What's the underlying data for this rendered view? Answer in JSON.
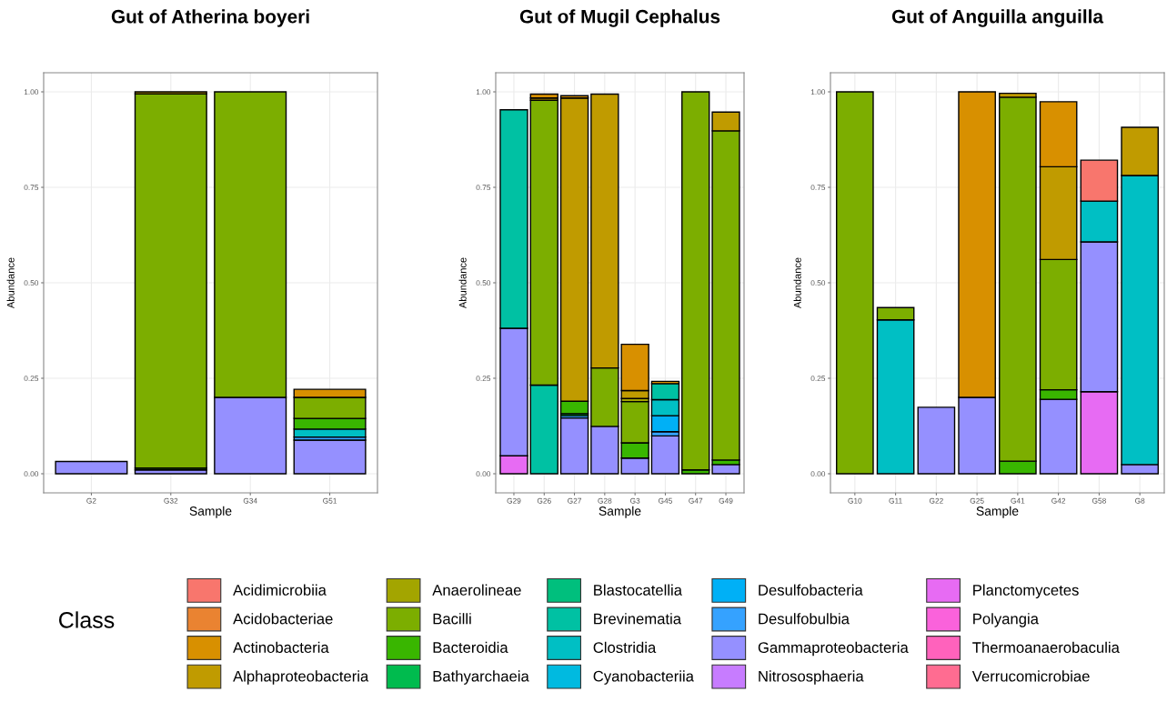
{
  "chart_data": [
    {
      "type": "bar",
      "stacked": true,
      "title": "Gut of Atherina boyeri",
      "xlabel": "Sample",
      "ylabel": "Abundance",
      "legend_title": "Class",
      "legend": "bottom",
      "grid": true,
      "ylim": [
        -0.05,
        1.05
      ],
      "yticks": [
        {
          "value": 0,
          "label": "0.00"
        },
        {
          "value": 0.25,
          "label": "0.25"
        },
        {
          "value": 0.5,
          "label": "0.50"
        },
        {
          "value": 0.75,
          "label": "0.75"
        },
        {
          "value": 1,
          "label": "1.00"
        }
      ],
      "categories": [
        "G2",
        "G32",
        "G34",
        "G51"
      ],
      "series": [
        {
          "name": "Verrucomicrobiae",
          "color": "#ff6c91",
          "values": [
            null,
            null,
            null,
            null
          ]
        },
        {
          "name": "Thermoanaerobaculia",
          "color": "#ff62bc",
          "values": [
            null,
            null,
            null,
            null
          ]
        },
        {
          "name": "Polyangia",
          "color": "#fa62db",
          "values": [
            null,
            null,
            null,
            null
          ]
        },
        {
          "name": "Planctomycetes",
          "color": "#e76bf3",
          "values": [
            null,
            null,
            null,
            null
          ]
        },
        {
          "name": "Nitrososphaeria",
          "color": "#c77cff",
          "values": [
            null,
            null,
            null,
            null
          ]
        },
        {
          "name": "Gammaproteobacteria",
          "color": "#9590ff",
          "values": [
            0.032,
            0.01,
            0.2,
            0.088
          ]
        },
        {
          "name": "Desulfobulbia",
          "color": "#35a2ff",
          "values": [
            null,
            null,
            null,
            0.008
          ]
        },
        {
          "name": "Desulfobacteria",
          "color": "#00b0f6",
          "values": [
            null,
            null,
            null,
            null
          ]
        },
        {
          "name": "Cyanobacteriia",
          "color": "#00bae0",
          "values": [
            null,
            null,
            null,
            null
          ]
        },
        {
          "name": "Clostridia",
          "color": "#00bfc4",
          "values": [
            null,
            null,
            null,
            0.021
          ]
        },
        {
          "name": "Brevinematia",
          "color": "#00c1a3",
          "values": [
            null,
            null,
            null,
            null
          ]
        },
        {
          "name": "Blastocatellia",
          "color": "#00bf7d",
          "values": [
            null,
            null,
            null,
            null
          ]
        },
        {
          "name": "Bathyarchaeia",
          "color": "#00bb4e",
          "values": [
            null,
            null,
            null,
            null
          ]
        },
        {
          "name": "Bacteroidia",
          "color": "#39b600",
          "values": [
            null,
            0.005,
            null,
            0.028
          ]
        },
        {
          "name": "Bacilli",
          "color": "#7cae00",
          "values": [
            null,
            0.98,
            0.8,
            0.055
          ]
        },
        {
          "name": "Anaerolineae",
          "color": "#a3a500",
          "values": [
            null,
            null,
            null,
            null
          ]
        },
        {
          "name": "Alphaproteobacteria",
          "color": "#c09b00",
          "values": [
            null,
            0.005,
            null,
            null
          ]
        },
        {
          "name": "Actinobacteria",
          "color": "#d89000",
          "values": [
            null,
            null,
            null,
            0.021
          ]
        },
        {
          "name": "Acidobacteriae",
          "color": "#ea8331",
          "values": [
            null,
            null,
            null,
            null
          ]
        },
        {
          "name": "Acidimicrobiia",
          "color": "#f8766d",
          "values": [
            null,
            null,
            null,
            null
          ]
        }
      ]
    },
    {
      "type": "bar",
      "stacked": true,
      "title": "Gut of Mugil Cephalus",
      "xlabel": "Sample",
      "ylabel": "Abundance",
      "grid": true,
      "ylim": [
        -0.05,
        1.05
      ],
      "yticks": [
        {
          "value": 0,
          "label": "0.00"
        },
        {
          "value": 0.25,
          "label": "0.25"
        },
        {
          "value": 0.5,
          "label": "0.50"
        },
        {
          "value": 0.75,
          "label": "0.75"
        },
        {
          "value": 1,
          "label": "1.00"
        }
      ],
      "categories": [
        "G29",
        "G26",
        "G27",
        "G28",
        "G3",
        "G45",
        "G47",
        "G49"
      ],
      "series": [
        {
          "color": "#e76bf3",
          "values": [
            0.047,
            null,
            null,
            null,
            null,
            null,
            null,
            null
          ]
        },
        {
          "color": "#9590ff",
          "values": [
            0.334,
            null,
            0.146,
            0.124,
            0.041,
            0.099,
            null,
            0.024
          ]
        },
        {
          "color": "#35a2ff",
          "values": [
            null,
            null,
            0.006,
            null,
            null,
            0.011,
            null,
            null
          ]
        },
        {
          "color": "#00b0f6",
          "values": [
            null,
            null,
            null,
            null,
            null,
            0.042,
            null,
            null
          ]
        },
        {
          "color": "#00bfc4",
          "values": [
            null,
            null,
            null,
            null,
            null,
            0.042,
            null,
            null
          ]
        },
        {
          "color": "#00c1a3",
          "values": [
            0.572,
            0.232,
            null,
            null,
            null,
            0.042,
            null,
            null
          ]
        },
        {
          "color": "#00bb4e",
          "values": [
            null,
            null,
            0.005,
            null,
            null,
            null,
            null,
            null
          ]
        },
        {
          "color": "#39b600",
          "values": [
            null,
            null,
            0.033,
            null,
            0.04,
            null,
            0.01,
            0.012
          ]
        },
        {
          "color": "#7cae00",
          "values": [
            null,
            0.746,
            null,
            0.153,
            0.108,
            null,
            0.99,
            0.862
          ]
        },
        {
          "color": "#a3a500",
          "values": [
            null,
            null,
            null,
            null,
            0.008,
            null,
            null,
            null
          ]
        },
        {
          "color": "#c09b00",
          "values": [
            null,
            0.006,
            0.794,
            0.717,
            0.021,
            null,
            null,
            0.049
          ]
        },
        {
          "color": "#d89000",
          "values": [
            null,
            0.01,
            0.006,
            null,
            0.121,
            0.006,
            null,
            null
          ]
        }
      ]
    },
    {
      "type": "bar",
      "stacked": true,
      "title": "Gut of Anguilla anguilla",
      "xlabel": "Sample",
      "ylabel": "Abundance",
      "grid": true,
      "ylim": [
        -0.05,
        1.05
      ],
      "yticks": [
        {
          "value": 0,
          "label": "0.00"
        },
        {
          "value": 0.25,
          "label": "0.25"
        },
        {
          "value": 0.5,
          "label": "0.50"
        },
        {
          "value": 0.75,
          "label": "0.75"
        },
        {
          "value": 1,
          "label": "1.00"
        }
      ],
      "categories": [
        "G10",
        "G11",
        "G22",
        "G25",
        "G41",
        "G42",
        "G58",
        "G8"
      ],
      "series": [
        {
          "color": "#e76bf3",
          "values": [
            null,
            null,
            null,
            null,
            null,
            null,
            0.215,
            null
          ]
        },
        {
          "color": "#9590ff",
          "values": [
            null,
            null,
            0.174,
            0.2,
            null,
            0.195,
            0.392,
            0.024
          ]
        },
        {
          "color": "#00bfc4",
          "values": [
            null,
            0.403,
            null,
            null,
            null,
            null,
            0.107,
            0.757
          ]
        },
        {
          "color": "#39b600",
          "values": [
            null,
            null,
            null,
            null,
            0.033,
            0.025,
            null,
            null
          ]
        },
        {
          "color": "#7cae00",
          "values": [
            1.0,
            0.032,
            null,
            null,
            0.953,
            0.341,
            null,
            null
          ]
        },
        {
          "color": "#c09b00",
          "values": [
            null,
            null,
            null,
            null,
            0.01,
            0.243,
            null,
            0.126
          ]
        },
        {
          "color": "#d89000",
          "values": [
            null,
            null,
            null,
            0.8,
            null,
            0.17,
            null,
            null
          ]
        },
        {
          "color": "#f8766d",
          "values": [
            null,
            null,
            null,
            null,
            null,
            null,
            0.107,
            null
          ]
        }
      ]
    }
  ]
}
